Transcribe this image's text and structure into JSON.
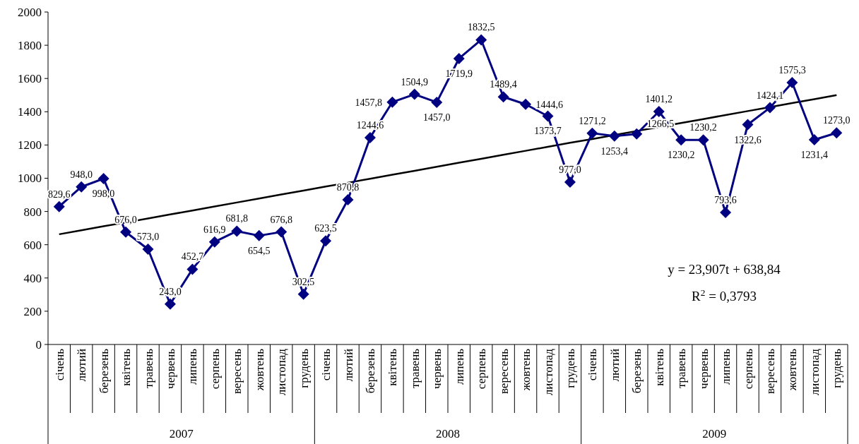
{
  "chart_data": {
    "type": "line",
    "categories": [
      "січень",
      "лютий",
      "березень",
      "квітень",
      "травень",
      "червень",
      "липень",
      "серпень",
      "вересень",
      "жовтень",
      "листопад",
      "грудень",
      "січень",
      "лютий",
      "березень",
      "квітень",
      "травень",
      "червень",
      "липень",
      "серпень",
      "вересень",
      "жовтень",
      "листопад",
      "грудень",
      "січень",
      "лютий",
      "березень",
      "квітень",
      "травень",
      "червень",
      "липень",
      "серпень",
      "вересень",
      "жовтень",
      "листопад",
      "грудень"
    ],
    "series": [
      {
        "color": "#000080",
        "marker": "diamond",
        "values": [
          829.6,
          948.0,
          998.0,
          676.0,
          573.0,
          243.0,
          452.7,
          616.9,
          681.8,
          654.5,
          676.8,
          302.5,
          623.5,
          870.8,
          1244.6,
          1457.8,
          1504.9,
          1457.0,
          1719.9,
          1832.5,
          1489.4,
          1444.6,
          1373.7,
          977.0,
          1271.2,
          1253.4,
          1266.5,
          1401.2,
          1230.2,
          1230.2,
          793.6,
          1322.6,
          1424.1,
          1575.3,
          1231.4,
          1273.0
        ],
        "value_labels": [
          "829,6",
          "948,0",
          "998,0",
          "676,0",
          "573,0",
          "243,0",
          "452,7",
          "616,9",
          "681,8",
          "654,5",
          "676,8",
          "302,5",
          "623,5",
          "870,8",
          "1244,6",
          "1457,8",
          "1504,9",
          "1457,0",
          "1719,9",
          "1832,5",
          "1489,4",
          "1444,6",
          "1373,7",
          "977,0",
          "1271,2",
          "1253,4",
          "1266,5",
          "1401,2",
          "1230,2",
          "1230,2",
          "793,6",
          "1322,6",
          "1424,1",
          "1575,3",
          "1231,4",
          "1273,0"
        ]
      },
      {
        "type": "line",
        "color": "#000000",
        "marker": "none",
        "values": [
          663,
          687,
          711,
          734,
          758,
          782,
          806,
          830,
          854,
          878,
          902,
          926,
          950,
          973,
          997,
          1021,
          1045,
          1069,
          1093,
          1117,
          1141,
          1165,
          1189,
          1213,
          1236,
          1260,
          1284,
          1308,
          1332,
          1356,
          1380,
          1404,
          1428,
          1452,
          1476,
          1500
        ]
      }
    ],
    "ylim": [
      0,
      2000
    ],
    "yticks": [
      0,
      200,
      400,
      600,
      800,
      1000,
      1200,
      1400,
      1600,
      1800,
      2000
    ],
    "annotations": [
      "2007",
      "2008",
      "2009",
      "y = 23,907t + 638,84",
      "R$^{2}$ = 0,3793"
    ]
  }
}
